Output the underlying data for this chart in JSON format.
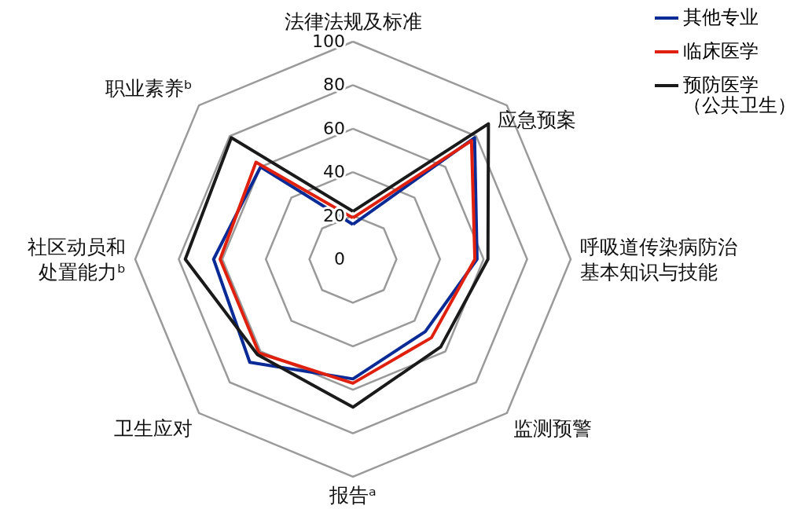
{
  "chart_data": {
    "type": "radar",
    "categories": [
      "法律法规及标准",
      "应急预案",
      "呼吸道传染病防治基本知识与技能",
      "监测预警",
      "报告ᵃ",
      "卫生应对",
      "社区动员和处置能力ᵇ",
      "职业素养ᵇ"
    ],
    "series": [
      {
        "name": "其他专业",
        "color": "#0a2a96",
        "values": [
          16,
          79,
          57,
          47,
          55,
          67,
          64,
          60
        ]
      },
      {
        "name": "临床医学",
        "color": "#e0200e",
        "values": [
          19,
          77,
          56,
          51,
          57,
          61,
          61,
          63
        ]
      },
      {
        "name": "预防医学（公共卫生）",
        "color": "#1a1a1a",
        "values": [
          22,
          88,
          62,
          57,
          68,
          62,
          77,
          79
        ]
      }
    ],
    "ylim": [
      0,
      100
    ],
    "yticks": [
      0,
      20,
      40,
      60,
      80,
      100
    ],
    "legend": "top right",
    "grid": true,
    "line_style": "solid"
  }
}
